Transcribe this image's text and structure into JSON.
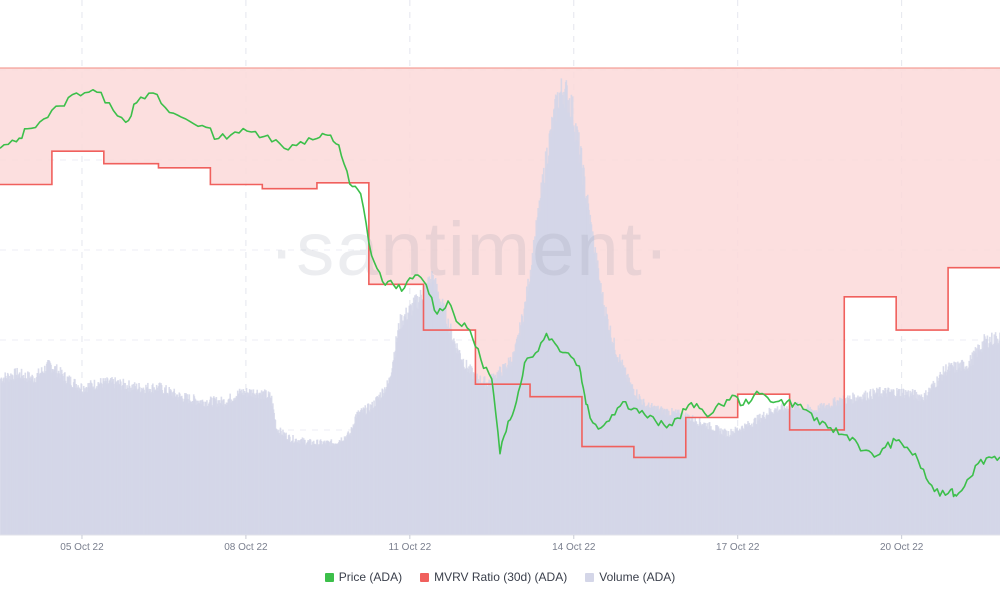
{
  "watermark": "·santiment·",
  "chart_data": {
    "type": "line",
    "x_tick_labels": [
      "05 Oct 22",
      "08 Oct 22",
      "11 Oct 22",
      "14 Oct 22",
      "17 Oct 22",
      "20 Oct 22"
    ],
    "x_tick_days": [
      5,
      8,
      11,
      14,
      17,
      20
    ],
    "x_range_days": [
      3.5,
      21.8
    ],
    "grid": true,
    "legend_placement": "bottom-center",
    "shaded_band": {
      "color": "#fbd9d9",
      "edge_color": "#f28b82",
      "applies_to": "MVRV Ratio (30d) (ADA)"
    },
    "series": [
      {
        "name": "Price (ADA)",
        "color": "#3cbf4a",
        "kind": "line",
        "points": [
          [
            3.5,
            0.419
          ],
          [
            3.8,
            0.421
          ],
          [
            4.0,
            0.425
          ],
          [
            4.3,
            0.428
          ],
          [
            4.6,
            0.432
          ],
          [
            4.9,
            0.436
          ],
          [
            5.2,
            0.437
          ],
          [
            5.5,
            0.433
          ],
          [
            5.8,
            0.427
          ],
          [
            6.0,
            0.433
          ],
          [
            6.3,
            0.436
          ],
          [
            6.6,
            0.43
          ],
          [
            6.9,
            0.428
          ],
          [
            7.2,
            0.426
          ],
          [
            7.5,
            0.422
          ],
          [
            7.8,
            0.424
          ],
          [
            8.1,
            0.424
          ],
          [
            8.4,
            0.423
          ],
          [
            8.7,
            0.419
          ],
          [
            9.0,
            0.421
          ],
          [
            9.3,
            0.422
          ],
          [
            9.5,
            0.423
          ],
          [
            9.7,
            0.42
          ],
          [
            9.9,
            0.408
          ],
          [
            10.1,
            0.405
          ],
          [
            10.3,
            0.386
          ],
          [
            10.5,
            0.378
          ],
          [
            10.7,
            0.377
          ],
          [
            10.9,
            0.376
          ],
          [
            11.1,
            0.38
          ],
          [
            11.3,
            0.377
          ],
          [
            11.5,
            0.368
          ],
          [
            11.7,
            0.372
          ],
          [
            11.9,
            0.365
          ],
          [
            12.1,
            0.363
          ],
          [
            12.3,
            0.354
          ],
          [
            12.5,
            0.348
          ],
          [
            12.65,
            0.325
          ],
          [
            12.8,
            0.335
          ],
          [
            12.95,
            0.341
          ],
          [
            13.1,
            0.353
          ],
          [
            13.3,
            0.356
          ],
          [
            13.5,
            0.362
          ],
          [
            13.7,
            0.358
          ],
          [
            13.9,
            0.356
          ],
          [
            14.1,
            0.352
          ],
          [
            14.2,
            0.343
          ],
          [
            14.3,
            0.336
          ],
          [
            14.5,
            0.333
          ],
          [
            14.7,
            0.337
          ],
          [
            14.9,
            0.341
          ],
          [
            15.1,
            0.339
          ],
          [
            15.3,
            0.337
          ],
          [
            15.5,
            0.335
          ],
          [
            15.7,
            0.333
          ],
          [
            15.9,
            0.336
          ],
          [
            16.1,
            0.34
          ],
          [
            16.3,
            0.339
          ],
          [
            16.5,
            0.337
          ],
          [
            16.7,
            0.34
          ],
          [
            16.9,
            0.343
          ],
          [
            17.1,
            0.34
          ],
          [
            17.3,
            0.343
          ],
          [
            17.5,
            0.343
          ],
          [
            17.7,
            0.341
          ],
          [
            17.9,
            0.341
          ],
          [
            18.1,
            0.34
          ],
          [
            18.3,
            0.338
          ],
          [
            18.5,
            0.334
          ],
          [
            18.7,
            0.333
          ],
          [
            18.9,
            0.331
          ],
          [
            19.1,
            0.33
          ],
          [
            19.3,
            0.326
          ],
          [
            19.5,
            0.324
          ],
          [
            19.7,
            0.327
          ],
          [
            19.9,
            0.329
          ],
          [
            20.1,
            0.327
          ],
          [
            20.3,
            0.323
          ],
          [
            20.5,
            0.316
          ],
          [
            20.7,
            0.312
          ],
          [
            20.9,
            0.314
          ],
          [
            21.0,
            0.312
          ],
          [
            21.2,
            0.317
          ],
          [
            21.4,
            0.322
          ],
          [
            21.6,
            0.324
          ],
          [
            21.8,
            0.324
          ]
        ]
      },
      {
        "name": "MVRV Ratio (30d) (ADA)",
        "color": "#f0605d",
        "kind": "step",
        "points": [
          [
            3.5,
            -1.4
          ],
          [
            4.45,
            -1.4
          ],
          [
            4.45,
            -1.0
          ],
          [
            5.4,
            -1.0
          ],
          [
            5.4,
            -1.15
          ],
          [
            6.4,
            -1.15
          ],
          [
            6.4,
            -1.2
          ],
          [
            7.35,
            -1.2
          ],
          [
            7.35,
            -1.4
          ],
          [
            8.3,
            -1.4
          ],
          [
            8.3,
            -1.45
          ],
          [
            9.3,
            -1.45
          ],
          [
            9.3,
            -1.38
          ],
          [
            10.25,
            -1.38
          ],
          [
            10.25,
            -2.6
          ],
          [
            11.25,
            -2.6
          ],
          [
            11.25,
            -3.15
          ],
          [
            12.2,
            -3.15
          ],
          [
            12.2,
            -3.8
          ],
          [
            13.2,
            -3.8
          ],
          [
            13.2,
            -3.95
          ],
          [
            14.15,
            -3.95
          ],
          [
            14.15,
            -4.55
          ],
          [
            15.1,
            -4.55
          ],
          [
            15.1,
            -4.68
          ],
          [
            16.05,
            -4.68
          ],
          [
            16.05,
            -4.2
          ],
          [
            17.0,
            -4.2
          ],
          [
            17.0,
            -3.92
          ],
          [
            17.95,
            -3.92
          ],
          [
            17.95,
            -4.35
          ],
          [
            18.95,
            -4.35
          ],
          [
            18.95,
            -2.75
          ],
          [
            19.9,
            -2.75
          ],
          [
            19.9,
            -3.15
          ],
          [
            20.85,
            -3.15
          ],
          [
            20.85,
            -2.4
          ],
          [
            21.8,
            -2.4
          ]
        ]
      },
      {
        "name": "Volume (ADA)",
        "color": "#d4d6e8",
        "kind": "area",
        "points": [
          [
            3.5,
            0.34
          ],
          [
            3.8,
            0.35
          ],
          [
            4.1,
            0.34
          ],
          [
            4.4,
            0.37
          ],
          [
            4.7,
            0.34
          ],
          [
            5.0,
            0.32
          ],
          [
            5.3,
            0.33
          ],
          [
            5.6,
            0.33
          ],
          [
            6.0,
            0.32
          ],
          [
            6.4,
            0.32
          ],
          [
            6.8,
            0.3
          ],
          [
            7.2,
            0.29
          ],
          [
            7.6,
            0.29
          ],
          [
            7.9,
            0.31
          ],
          [
            8.2,
            0.31
          ],
          [
            8.45,
            0.3
          ],
          [
            8.55,
            0.23
          ],
          [
            8.8,
            0.21
          ],
          [
            9.2,
            0.2
          ],
          [
            9.6,
            0.2
          ],
          [
            9.9,
            0.22
          ],
          [
            10.0,
            0.26
          ],
          [
            10.3,
            0.28
          ],
          [
            10.6,
            0.33
          ],
          [
            10.8,
            0.46
          ],
          [
            11.0,
            0.49
          ],
          [
            11.2,
            0.52
          ],
          [
            11.4,
            0.56
          ],
          [
            11.6,
            0.49
          ],
          [
            11.8,
            0.42
          ],
          [
            12.0,
            0.37
          ],
          [
            12.2,
            0.34
          ],
          [
            12.4,
            0.33
          ],
          [
            12.7,
            0.36
          ],
          [
            12.9,
            0.39
          ],
          [
            13.1,
            0.5
          ],
          [
            13.3,
            0.66
          ],
          [
            13.5,
            0.83
          ],
          [
            13.7,
            0.95
          ],
          [
            13.8,
            0.97
          ],
          [
            13.95,
            0.93
          ],
          [
            14.1,
            0.83
          ],
          [
            14.3,
            0.67
          ],
          [
            14.5,
            0.52
          ],
          [
            14.7,
            0.42
          ],
          [
            15.0,
            0.33
          ],
          [
            15.3,
            0.28
          ],
          [
            15.6,
            0.27
          ],
          [
            16.0,
            0.26
          ],
          [
            16.4,
            0.24
          ],
          [
            16.8,
            0.22
          ],
          [
            17.2,
            0.24
          ],
          [
            17.6,
            0.27
          ],
          [
            18.0,
            0.28
          ],
          [
            18.4,
            0.27
          ],
          [
            18.8,
            0.29
          ],
          [
            19.2,
            0.3
          ],
          [
            19.6,
            0.31
          ],
          [
            20.0,
            0.31
          ],
          [
            20.4,
            0.3
          ],
          [
            20.8,
            0.36
          ],
          [
            21.2,
            0.37
          ],
          [
            21.5,
            0.42
          ],
          [
            21.8,
            0.43
          ]
        ]
      }
    ]
  }
}
